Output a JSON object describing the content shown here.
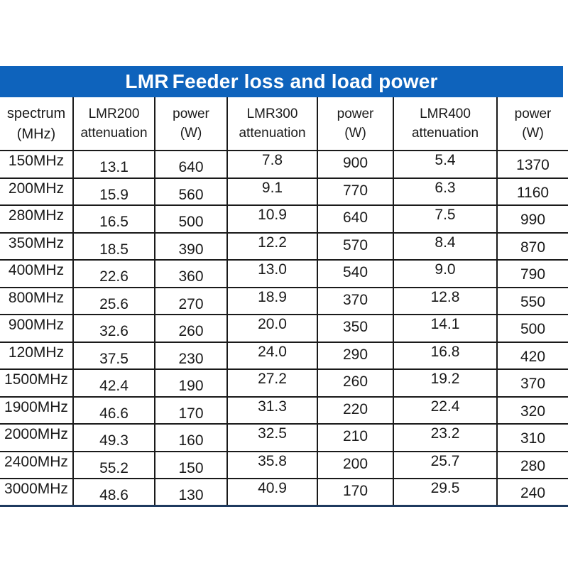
{
  "banner": {
    "title_prefix": "LMR",
    "title_main": "Feeder loss and load power"
  },
  "colors": {
    "banner_bg": "#0e63bc",
    "banner_text": "#ffffff",
    "grid_line": "#1a1a1a",
    "table_bottom_border": "#1e3a5f",
    "cell_text": "#1a1a1a",
    "page_bg": "#ffffff"
  },
  "chart_data": {
    "type": "table",
    "title": "LMR Feeder loss and load power",
    "columns": [
      {
        "key": "spectrum",
        "line1": "spectrum",
        "line2": "(MHz)"
      },
      {
        "key": "lmr200-att",
        "line1": "LMR200",
        "line2": "attenuation"
      },
      {
        "key": "lmr200-power",
        "line1": "power",
        "line2": "(W)"
      },
      {
        "key": "lmr300-att",
        "line1": "LMR300",
        "line2": "attenuation"
      },
      {
        "key": "lmr300-power",
        "line1": "power",
        "line2": "(W)"
      },
      {
        "key": "lmr400-att",
        "line1": "LMR400",
        "line2": "attenuation"
      },
      {
        "key": "lmr400-power",
        "line1": "power",
        "line2": "(W)"
      }
    ],
    "rows": [
      [
        "150MHz",
        "13.1",
        "640",
        "7.8",
        "900",
        "5.4",
        "1370"
      ],
      [
        "200MHz",
        "15.9",
        "560",
        "9.1",
        "770",
        "6.3",
        "1160"
      ],
      [
        "280MHz",
        "16.5",
        "500",
        "10.9",
        "640",
        "7.5",
        "990"
      ],
      [
        "350MHz",
        "18.5",
        "390",
        "12.2",
        "570",
        "8.4",
        "870"
      ],
      [
        "400MHz",
        "22.6",
        "360",
        "13.0",
        "540",
        "9.0",
        "790"
      ],
      [
        "800MHz",
        "25.6",
        "270",
        "18.9",
        "370",
        "12.8",
        "550"
      ],
      [
        "900MHz",
        "32.6",
        "260",
        "20.0",
        "350",
        "14.1",
        "500"
      ],
      [
        "120MHz",
        "37.5",
        "230",
        "24.0",
        "290",
        "16.8",
        "420"
      ],
      [
        "1500MHz",
        "42.4",
        "190",
        "27.2",
        "260",
        "19.2",
        "370"
      ],
      [
        "1900MHz",
        "46.6",
        "170",
        "31.3",
        "220",
        "22.4",
        "320"
      ],
      [
        "2000MHz",
        "49.3",
        "160",
        "32.5",
        "210",
        "23.2",
        "310"
      ],
      [
        "2400MHz",
        "55.2",
        "150",
        "35.8",
        "200",
        "25.7",
        "280"
      ],
      [
        "3000MHz",
        "48.6",
        "130",
        "40.9",
        "170",
        "29.5",
        "240"
      ]
    ]
  }
}
